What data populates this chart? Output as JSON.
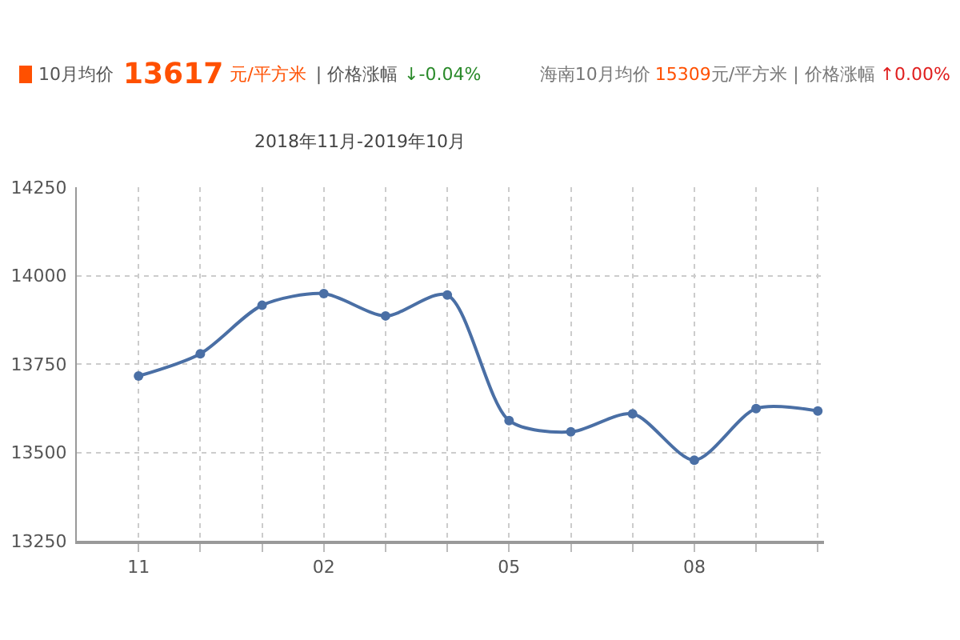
{
  "chart_data": {
    "type": "line",
    "title": "2018年11月-2019年10月",
    "annotations": [
      "10月均价",
      "13617",
      "元/平方米",
      "| 价格涨幅",
      "↓-0.04%",
      "海南10月均价",
      "15309",
      "元/平方米 | 价格涨幅",
      "↑0.00%"
    ],
    "categories": [
      "11",
      null,
      null,
      "02",
      null,
      null,
      "05",
      null,
      null,
      "08",
      null,
      null
    ],
    "series": [
      {
        "color": "#4a6fa5",
        "values": [
          13716,
          13779,
          13916,
          13949,
          13886,
          13945,
          13590,
          13558,
          13609,
          13478,
          13624,
          13617
        ]
      }
    ],
    "ylim": [
      13250,
      14250
    ],
    "yticks": [
      13250,
      13500,
      13750,
      14000,
      14250
    ],
    "grid": true,
    "marker": "circle",
    "line_style": "solid"
  }
}
